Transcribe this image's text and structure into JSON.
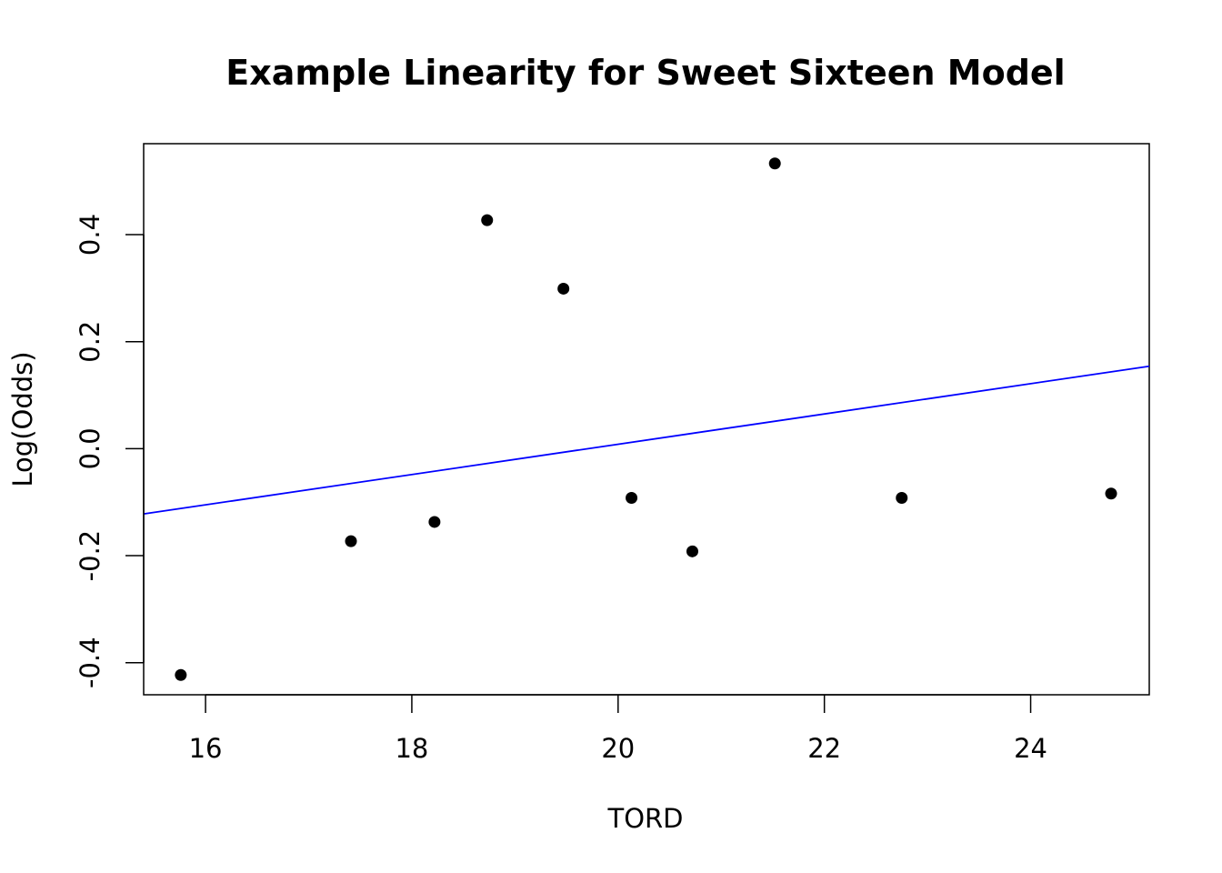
{
  "chart_data": {
    "type": "scatter",
    "title": "Example Linearity for Sweet Sixteen Model",
    "xlabel": "TORD",
    "ylabel": "Log(Odds)",
    "xlim": [
      15.4,
      25.15
    ],
    "ylim": [
      -0.46,
      0.57
    ],
    "x_ticks": [
      16,
      18,
      20,
      22,
      24
    ],
    "x_tick_labels": [
      "16",
      "18",
      "20",
      "22",
      "24"
    ],
    "y_ticks": [
      -0.4,
      -0.2,
      0.0,
      0.2,
      0.4
    ],
    "y_tick_labels": [
      "-0.4",
      "-0.2",
      "0.0",
      "0.2",
      "0.4"
    ],
    "grid": false,
    "points": {
      "x": [
        15.76,
        17.41,
        18.22,
        18.73,
        19.47,
        20.13,
        20.72,
        21.52,
        22.75,
        24.78
      ],
      "y": [
        -0.423,
        -0.173,
        -0.137,
        0.427,
        0.299,
        -0.092,
        -0.192,
        0.533,
        -0.092,
        -0.084
      ],
      "color": "#000000"
    },
    "fit_line": {
      "x": [
        15.4,
        25.15
      ],
      "y": [
        -0.122,
        0.154
      ],
      "color": "#0000ff"
    }
  }
}
